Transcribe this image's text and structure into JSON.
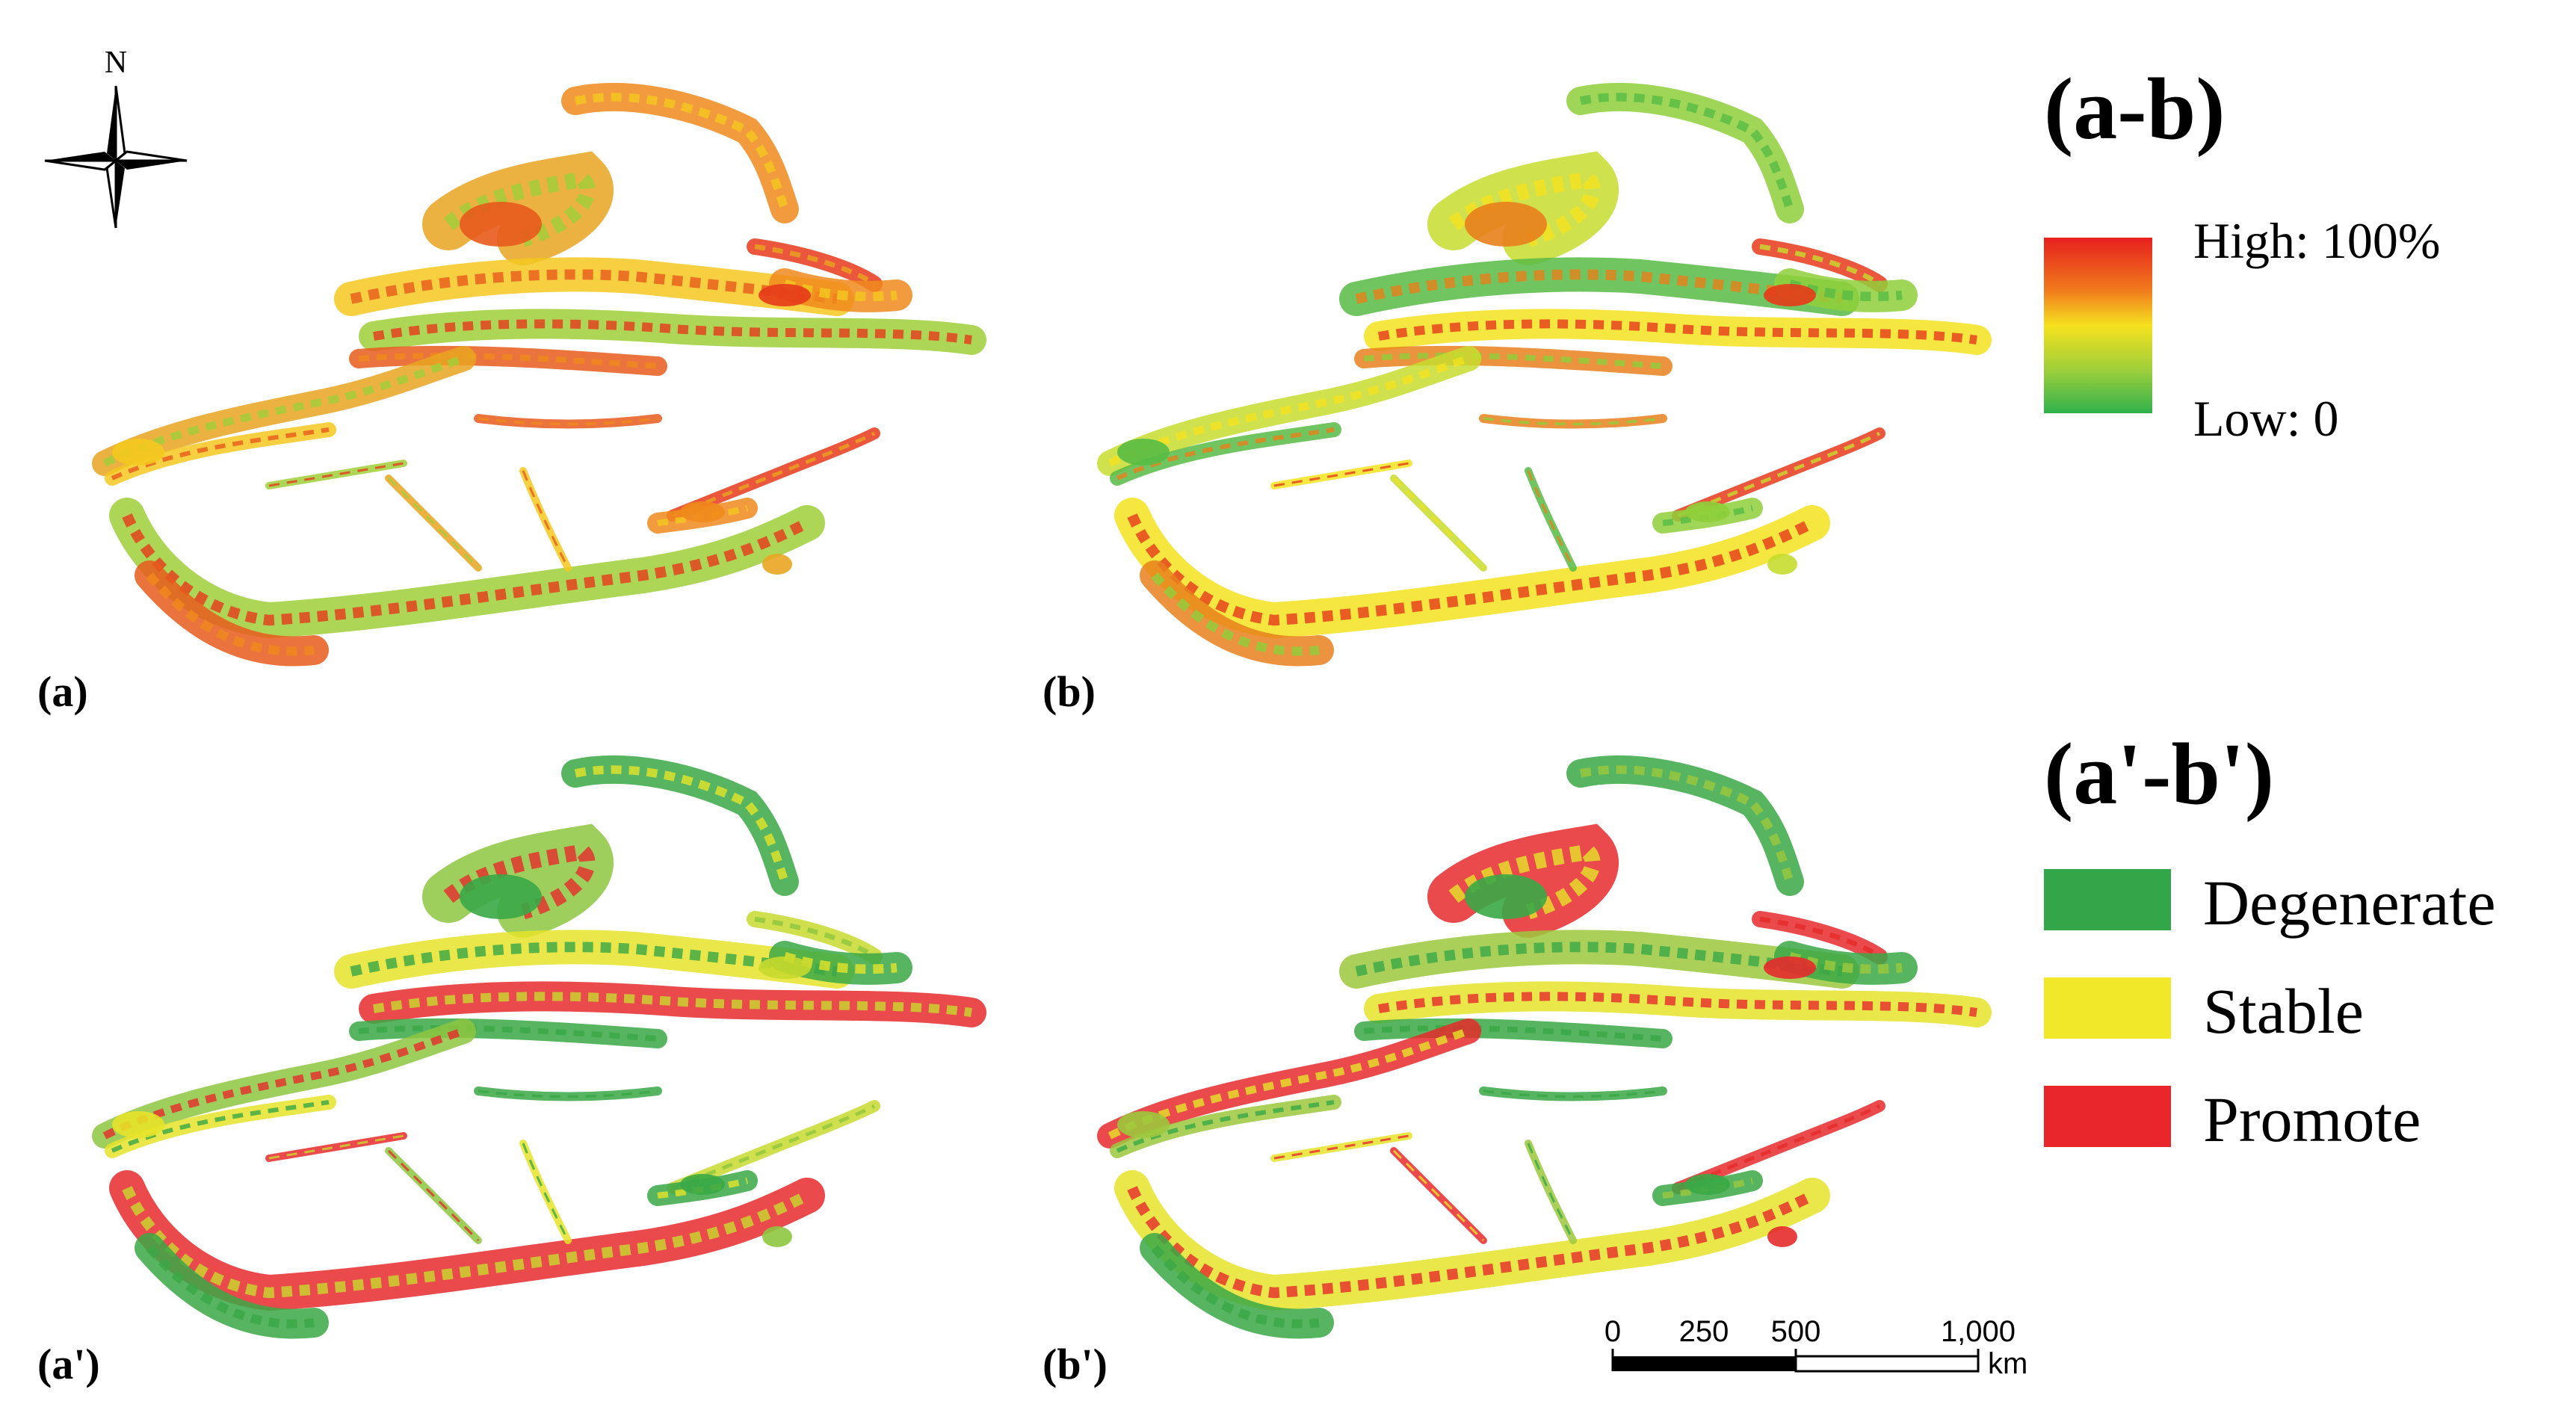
{
  "compass": {
    "north_label": "N",
    "icon": "compass-rose-icon"
  },
  "panels": [
    {
      "id": "a",
      "label": "(a)",
      "scheme": "continuous",
      "dominant": "orange-red"
    },
    {
      "id": "b",
      "label": "(b)",
      "scheme": "continuous",
      "dominant": "green-yellow"
    },
    {
      "id": "a2",
      "label": "(a')",
      "scheme": "categorical",
      "dominant": "green-yellow"
    },
    {
      "id": "b2",
      "label": "(b')",
      "scheme": "categorical",
      "dominant": "green-red"
    }
  ],
  "legend_continuous": {
    "title": "(a-b)",
    "high_label": "High: 100%",
    "low_label": "Low: 0",
    "colors": [
      "#e8201f",
      "#f07a1c",
      "#f6e11e",
      "#9fcf3a",
      "#2fb14c"
    ]
  },
  "legend_categorical": {
    "title": "(a'-b')",
    "items": [
      {
        "label": "Degenerate",
        "color": "#33a64a"
      },
      {
        "label": "Stable",
        "color": "#f1e82a"
      },
      {
        "label": "Promote",
        "color": "#e8262b"
      }
    ]
  },
  "scale_bar": {
    "ticks": [
      "0",
      "250",
      "500",
      "1,000"
    ],
    "unit": "km"
  }
}
